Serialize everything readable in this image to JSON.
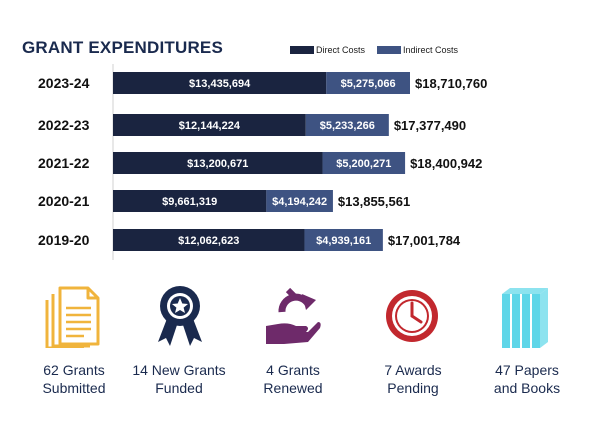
{
  "chart_data": {
    "type": "bar",
    "stacked": true,
    "orientation": "horizontal",
    "title": "GRANT EXPENDITURES",
    "categories": [
      "2023-24",
      "2022-23",
      "2021-22",
      "2020-21",
      "2019-20"
    ],
    "series": [
      {
        "name": "Direct Costs",
        "color": "#1a2440",
        "values": [
          13435694,
          12144224,
          13200671,
          9661319,
          12062623
        ],
        "labels": [
          "$13,435,694",
          "$12,144,224",
          "$13,200,671",
          "$9,661,319",
          "$12,062,623"
        ]
      },
      {
        "name": "Indirect Costs",
        "color": "#3e5382",
        "values": [
          5275066,
          5233266,
          5200271,
          4194242,
          4939161
        ],
        "labels": [
          "$5,275,066",
          "$5,233,266",
          "$5,200,271",
          "$4,194,242",
          "$4,939,161"
        ]
      }
    ],
    "totals": [
      18710760,
      17377490,
      18400942,
      13855561,
      17001784
    ],
    "total_labels": [
      "$18,710,760",
      "$17,377,490",
      "$18,400,942",
      "$13,855,561",
      "$17,001,784"
    ]
  },
  "stats": [
    {
      "label": "62 Grants Submitted",
      "line1": "62 Grants",
      "line2": "Submitted",
      "icon": "document-stack-icon",
      "color": "#f0b43c"
    },
    {
      "label": "14 New Grants Funded",
      "line1": "14 New Grants",
      "line2": "Funded",
      "icon": "award-ribbon-icon",
      "color": "#1a2a4e"
    },
    {
      "label": "4 Grants Renewed",
      "line1": "4 Grants",
      "line2": "Renewed",
      "icon": "hand-renew-icon",
      "color": "#6e2a6a"
    },
    {
      "label": "7 Awards Pending",
      "line1": "7 Awards",
      "line2": "Pending",
      "icon": "clock-icon",
      "color": "#c2282e"
    },
    {
      "label": "47 Papers and Books",
      "line1": "47 Papers",
      "line2": "and Books",
      "icon": "books-icon",
      "color": "#5fd6e8"
    }
  ]
}
